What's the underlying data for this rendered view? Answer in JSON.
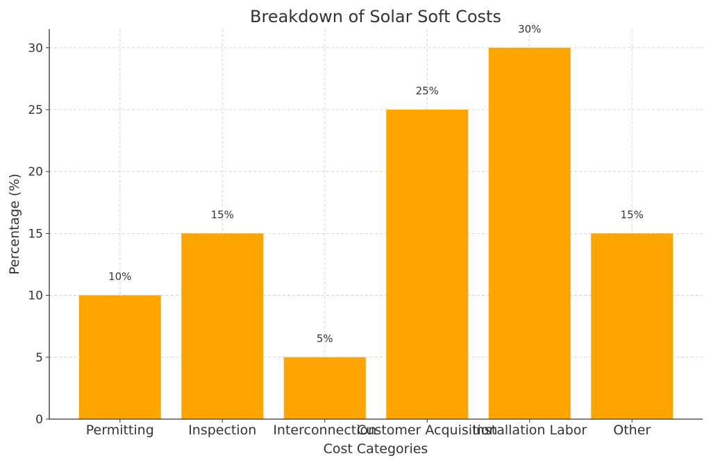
{
  "chart_data": {
    "type": "bar",
    "title": "Breakdown of Solar Soft Costs",
    "xlabel": "Cost Categories",
    "ylabel": "Percentage (%)",
    "categories": [
      "Permitting",
      "Inspection",
      "Interconnection",
      "Customer Acquisition",
      "Installation Labor",
      "Other"
    ],
    "values": [
      10,
      15,
      5,
      25,
      30,
      15
    ],
    "data_labels": [
      "10%",
      "15%",
      "5%",
      "25%",
      "30%",
      "15%"
    ],
    "yticks": [
      0,
      5,
      10,
      15,
      20,
      25,
      30
    ],
    "ylim": [
      0,
      31.5
    ],
    "grid": true,
    "bar_color": "#FFA500"
  }
}
